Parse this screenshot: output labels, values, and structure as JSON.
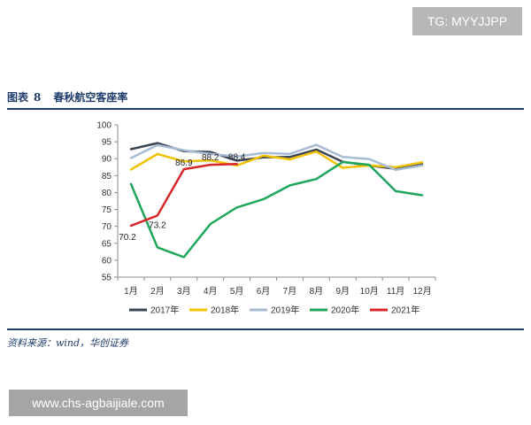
{
  "watermark_top": "TG: MYYJJPP",
  "watermark_bottom": "www.chs-agbaijiale.com",
  "figure": {
    "label": "图表",
    "number": "8",
    "title": "春秋航空客座率"
  },
  "source": "资料来源：wind，华创证券",
  "chart_data": {
    "type": "line",
    "categories": [
      "1月",
      "2月",
      "3月",
      "4月",
      "5月",
      "6月",
      "7月",
      "8月",
      "9月",
      "10月",
      "11月",
      "12月"
    ],
    "ylim": [
      55,
      100
    ],
    "yticks": [
      "100",
      "95",
      "90",
      "85",
      "80",
      "75",
      "70",
      "65",
      "60",
      "55"
    ],
    "grid": false,
    "legend_position": "bottom",
    "series": [
      {
        "name": "2017年",
        "color": "#3a4556",
        "values": [
          92.8,
          94.6,
          92.2,
          92.0,
          89.4,
          90.4,
          90.5,
          92.7,
          89.1,
          88.0,
          87.0,
          88.4
        ]
      },
      {
        "name": "2018年",
        "color": "#f2c200",
        "values": [
          86.8,
          91.4,
          89.2,
          89.5,
          88.0,
          90.9,
          89.8,
          92.1,
          87.3,
          88.0,
          87.5,
          88.9
        ]
      },
      {
        "name": "2019年",
        "color": "#a7bbd2",
        "values": [
          90.2,
          94.0,
          92.5,
          91.4,
          90.6,
          91.7,
          91.4,
          94.1,
          90.5,
          89.9,
          86.7,
          88.0
        ]
      },
      {
        "name": "2020年",
        "color": "#1ea65a",
        "values": [
          82.5,
          63.8,
          60.9,
          70.7,
          75.6,
          78.0,
          82.1,
          84.0,
          89.0,
          88.2,
          80.4,
          79.2
        ]
      },
      {
        "name": "2021年",
        "color": "#d9262b",
        "values": [
          70.2,
          73.2,
          86.9,
          88.2,
          88.4,
          null,
          null,
          null,
          null,
          null,
          null,
          null
        ]
      }
    ],
    "annotations": [
      {
        "series": "2021年",
        "index": 0,
        "text": "70.2"
      },
      {
        "series": "2021年",
        "index": 1,
        "text": "73.2"
      },
      {
        "series": "2021年",
        "index": 2,
        "text": "86.9"
      },
      {
        "series": "2021年",
        "index": 3,
        "text": "88.2"
      },
      {
        "series": "2021年",
        "index": 4,
        "text": "88.4"
      }
    ]
  }
}
